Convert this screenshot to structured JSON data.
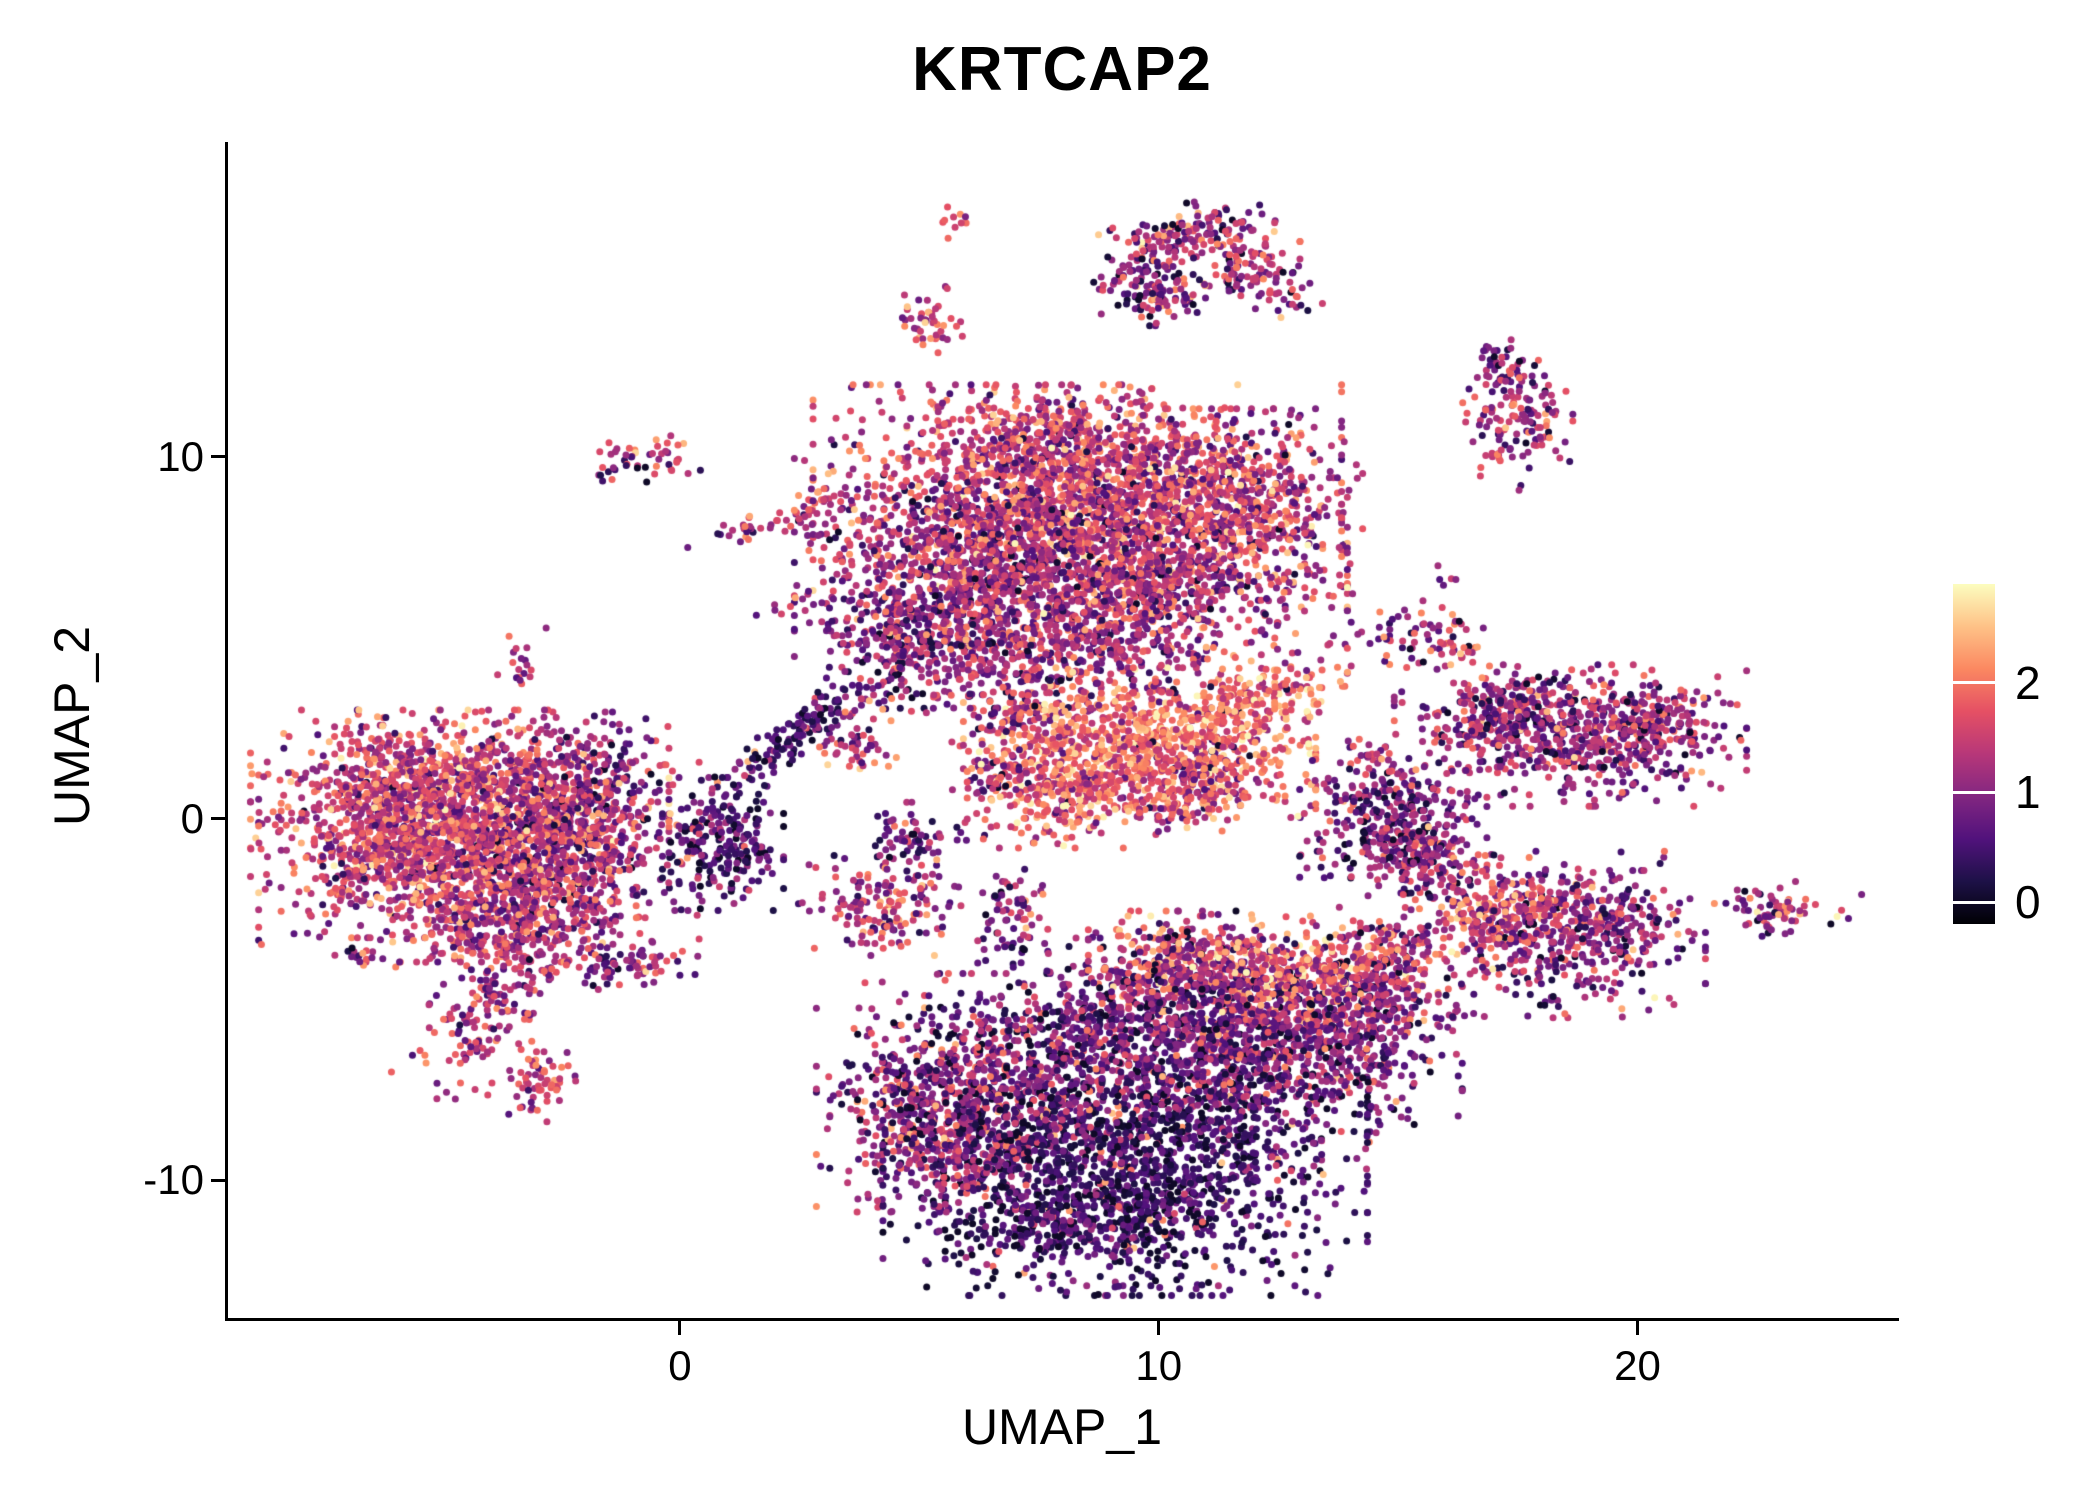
{
  "title": "KRTCAP2",
  "colors": {
    "background": "#ffffff",
    "axis": "#000000",
    "text": "#000000"
  },
  "chart_data": {
    "type": "scatter",
    "title": "KRTCAP2",
    "xlabel": "UMAP_1",
    "ylabel": "UMAP_2",
    "xlim": [
      -9.44,
      25.4
    ],
    "ylim": [
      -13.8,
      18.7
    ],
    "x_ticks": [
      0,
      10,
      20
    ],
    "y_ticks": [
      -10,
      0,
      10
    ],
    "grid": false,
    "legend": {
      "position": "right",
      "ticks": [
        0,
        1,
        2
      ],
      "range": [
        -0.2,
        2.9
      ]
    },
    "colormap": {
      "name": "magma",
      "stops": [
        "#000004",
        "#1d1147",
        "#51127c",
        "#822681",
        "#b73779",
        "#e55064",
        "#fb8861",
        "#fec287",
        "#fcfdbf"
      ]
    },
    "point_radius_px": 3.5,
    "cluster_format": [
      "center_x",
      "center_y",
      "radius_x",
      "radius_y",
      "rot_deg",
      "n_points",
      "expr_mean",
      "expr_sd"
    ],
    "clusters": [
      [
        -4.6,
        0.7,
        1.9,
        1.0,
        0,
        850,
        1.5,
        0.5
      ],
      [
        -4.2,
        -1.2,
        2.0,
        1.2,
        0,
        950,
        1.35,
        0.55
      ],
      [
        -5.8,
        -0.3,
        1.1,
        1.3,
        0,
        450,
        1.6,
        0.5
      ],
      [
        -2.5,
        -0.5,
        0.9,
        1.5,
        0,
        420,
        1.15,
        0.55
      ],
      [
        -3.7,
        -3.0,
        1.0,
        0.8,
        0,
        300,
        1.3,
        0.5
      ],
      [
        -4.0,
        -5.2,
        0.5,
        1.2,
        -25,
        150,
        1.4,
        0.5
      ],
      [
        -2.95,
        -7.3,
        0.35,
        0.5,
        0,
        60,
        1.5,
        0.45
      ],
      [
        -1.55,
        0.4,
        0.45,
        1.1,
        0,
        110,
        0.8,
        0.5
      ],
      [
        -6.3,
        1.2,
        0.5,
        0.6,
        0,
        80,
        1.4,
        0.5
      ],
      [
        -6.7,
        -3.9,
        0.3,
        0.2,
        0,
        12,
        1.0,
        0.7
      ],
      [
        -3.3,
        4.4,
        0.25,
        0.45,
        0,
        18,
        1.2,
        0.6
      ],
      [
        -1.2,
        9.8,
        0.35,
        0.3,
        0,
        26,
        1.0,
        0.7
      ],
      [
        -0.2,
        10.1,
        0.3,
        0.25,
        0,
        22,
        1.6,
        0.5
      ],
      [
        1.8,
        8.1,
        0.9,
        0.18,
        15,
        45,
        1.3,
        0.6
      ],
      [
        2.7,
        8.6,
        0.2,
        0.2,
        0,
        10,
        1.7,
        0.4
      ],
      [
        0.9,
        -0.7,
        0.55,
        0.8,
        0,
        220,
        0.55,
        0.4
      ],
      [
        2.4,
        2.3,
        1.2,
        0.22,
        45,
        150,
        0.5,
        0.35
      ],
      [
        3.6,
        2.1,
        0.4,
        0.4,
        0,
        55,
        1.3,
        0.6
      ],
      [
        4.8,
        -0.7,
        0.45,
        0.5,
        0,
        70,
        0.9,
        0.6
      ],
      [
        4.2,
        -2.4,
        0.75,
        0.6,
        0,
        150,
        1.2,
        0.65
      ],
      [
        7.0,
        -2.6,
        0.4,
        0.6,
        0,
        70,
        0.9,
        0.5
      ],
      [
        -0.6,
        -4.0,
        0.45,
        0.3,
        0,
        40,
        1.4,
        0.6
      ],
      [
        -1.6,
        -4.15,
        0.3,
        0.25,
        0,
        25,
        0.7,
        0.5
      ],
      [
        8.3,
        9.0,
        2.4,
        1.3,
        0,
        1400,
        1.5,
        0.55
      ],
      [
        6.3,
        6.5,
        1.7,
        1.5,
        0,
        1050,
        1.1,
        0.5
      ],
      [
        9.8,
        6.7,
        1.8,
        1.4,
        0,
        1050,
        1.3,
        0.55
      ],
      [
        11.5,
        8.8,
        1.2,
        1.1,
        0,
        500,
        1.45,
        0.55
      ],
      [
        7.5,
        10.6,
        1.2,
        0.6,
        0,
        250,
        1.5,
        0.5
      ],
      [
        4.9,
        5.0,
        0.8,
        0.9,
        0,
        240,
        0.95,
        0.5
      ],
      [
        7.6,
        4.4,
        1.4,
        0.7,
        0,
        200,
        1.1,
        0.6
      ],
      [
        9.6,
        2.1,
        1.6,
        0.9,
        0,
        700,
        1.95,
        0.45
      ],
      [
        8.3,
        0.8,
        1.0,
        0.7,
        0,
        300,
        1.8,
        0.5
      ],
      [
        11.8,
        3.2,
        1.0,
        0.5,
        25,
        200,
        1.9,
        0.45
      ],
      [
        10.8,
        0.9,
        0.8,
        0.6,
        0,
        200,
        1.6,
        0.5
      ],
      [
        7.0,
        2.7,
        0.5,
        0.5,
        0,
        80,
        1.4,
        0.6
      ],
      [
        6.6,
        1.2,
        0.4,
        0.4,
        0,
        50,
        1.2,
        0.6
      ],
      [
        9.3,
        -9.5,
        2.2,
        1.6,
        0,
        1500,
        0.35,
        0.3
      ],
      [
        6.3,
        -7.5,
        1.5,
        1.4,
        0,
        800,
        0.9,
        0.55
      ],
      [
        5.2,
        -8.8,
        0.9,
        0.9,
        0,
        300,
        1.1,
        0.6
      ],
      [
        12.2,
        -6.5,
        1.8,
        1.4,
        0,
        900,
        0.85,
        0.5
      ],
      [
        12.4,
        -4.3,
        1.5,
        0.7,
        0,
        450,
        1.7,
        0.55
      ],
      [
        9.9,
        -5.6,
        1.6,
        1.0,
        0,
        600,
        0.8,
        0.5
      ],
      [
        8.3,
        -11.3,
        1.2,
        0.7,
        0,
        250,
        0.5,
        0.45
      ],
      [
        14.3,
        -5.3,
        0.8,
        0.8,
        0,
        250,
        1.0,
        0.6
      ],
      [
        10.6,
        -3.7,
        0.9,
        0.5,
        0,
        200,
        1.3,
        0.7
      ],
      [
        14.8,
        -3.6,
        0.5,
        0.5,
        0,
        80,
        1.2,
        0.6
      ],
      [
        14.9,
        -0.1,
        0.85,
        0.9,
        0,
        350,
        0.85,
        0.5
      ],
      [
        14.4,
        1.6,
        0.3,
        0.3,
        0,
        25,
        1.5,
        0.5
      ],
      [
        18.6,
        2.3,
        1.6,
        0.85,
        0,
        650,
        1.0,
        0.55
      ],
      [
        20.3,
        2.6,
        0.6,
        0.5,
        0,
        120,
        1.3,
        0.6
      ],
      [
        17.2,
        2.9,
        0.6,
        0.5,
        0,
        100,
        1.2,
        0.6
      ],
      [
        18.2,
        -3.2,
        1.4,
        1.0,
        0,
        480,
        1.0,
        0.55
      ],
      [
        17.0,
        -2.6,
        0.6,
        0.7,
        0,
        150,
        1.7,
        0.5
      ],
      [
        19.5,
        -2.7,
        0.6,
        0.55,
        0,
        100,
        1.1,
        0.55
      ],
      [
        16.0,
        -1.6,
        0.5,
        0.6,
        40,
        80,
        1.0,
        0.6
      ],
      [
        15.3,
        -0.9,
        0.3,
        0.4,
        0,
        40,
        0.9,
        0.5
      ],
      [
        15.4,
        5.1,
        0.6,
        0.4,
        0,
        60,
        1.0,
        0.6
      ],
      [
        16.2,
        4.8,
        0.25,
        0.25,
        0,
        15,
        1.8,
        0.4
      ],
      [
        17.5,
        10.9,
        0.5,
        0.8,
        0,
        130,
        1.2,
        0.6
      ],
      [
        17.2,
        12.5,
        0.3,
        0.4,
        0,
        40,
        1.0,
        0.6
      ],
      [
        23.0,
        -2.6,
        0.65,
        0.4,
        -15,
        70,
        1.4,
        0.6
      ],
      [
        9.7,
        15.0,
        0.5,
        0.6,
        0,
        110,
        1.1,
        0.6
      ],
      [
        10.6,
        16.2,
        0.8,
        0.35,
        10,
        100,
        1.2,
        0.6
      ],
      [
        11.8,
        15.6,
        0.5,
        0.5,
        0,
        80,
        1.3,
        0.6
      ],
      [
        12.3,
        14.6,
        0.5,
        0.3,
        -30,
        50,
        1.2,
        0.6
      ],
      [
        10.3,
        14.5,
        0.5,
        0.3,
        0,
        50,
        0.9,
        0.5
      ],
      [
        5.8,
        16.5,
        0.18,
        0.25,
        0,
        10,
        1.8,
        0.3
      ],
      [
        5.2,
        13.7,
        0.35,
        0.45,
        0,
        45,
        1.7,
        0.45
      ],
      [
        6.2,
        -0.3,
        0.2,
        0.2,
        0,
        6,
        1.0,
        0.5
      ],
      [
        2.1,
        5.6,
        0.3,
        0.3,
        0,
        8,
        1.1,
        0.6
      ],
      [
        13.9,
        6.1,
        0.25,
        0.2,
        0,
        6,
        1.2,
        0.6
      ],
      [
        16.1,
        6.6,
        0.2,
        0.2,
        0,
        5,
        1.0,
        0.6
      ]
    ]
  }
}
